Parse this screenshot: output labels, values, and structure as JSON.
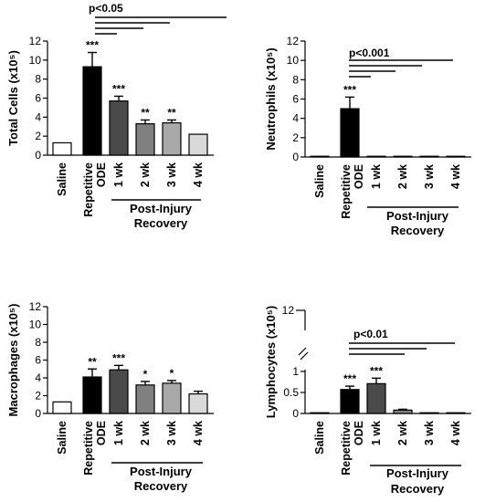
{
  "chart_data": [
    {
      "type": "bar",
      "ylabel": "Total Cells (x10⁵)",
      "ylim": [
        0,
        12
      ],
      "yticks": [
        0,
        2,
        4,
        6,
        8,
        10,
        12
      ],
      "categories": [
        "Saline",
        "Repetitive ODE",
        "1 wk",
        "2 wk",
        "3 wk",
        "4 wk"
      ],
      "values": [
        1.3,
        9.3,
        5.7,
        3.3,
        3.4,
        2.2
      ],
      "errors": [
        0.0,
        1.5,
        0.5,
        0.4,
        0.3,
        0.0
      ],
      "significance": [
        "",
        "***",
        "***",
        "**",
        "**",
        ""
      ],
      "fills": [
        "#ffffff",
        "#000000",
        "#4a4a4a",
        "#808080",
        "#a9a9a9",
        "#d9d9d9"
      ],
      "pvalue": "p<0.05",
      "group_label": [
        "Post-Injury",
        "Recovery"
      ]
    },
    {
      "type": "bar",
      "ylabel": "Neutrophils (x10⁵)",
      "ylim": [
        0,
        12
      ],
      "yticks": [
        0,
        2,
        4,
        6,
        8,
        10,
        12
      ],
      "categories": [
        "Saline",
        "Repetitive ODE",
        "1 wk",
        "2 wk",
        "3 wk",
        "4 wk"
      ],
      "values": [
        0.05,
        5.0,
        0.05,
        0.05,
        0.05,
        0.05
      ],
      "errors": [
        0.0,
        1.2,
        0.0,
        0.0,
        0.0,
        0.0
      ],
      "significance": [
        "",
        "***",
        "",
        "",
        "",
        ""
      ],
      "fills": [
        "#ffffff",
        "#000000",
        "#4a4a4a",
        "#808080",
        "#a9a9a9",
        "#d9d9d9"
      ],
      "pvalue": "p<0.001",
      "group_label": [
        "Post-Injury",
        "Recovery"
      ]
    },
    {
      "type": "bar",
      "ylabel": "Macrophages (x10⁵)",
      "ylim": [
        0,
        12
      ],
      "yticks": [
        0,
        2,
        4,
        6,
        8,
        10,
        12
      ],
      "categories": [
        "Saline",
        "Repetitive ODE",
        "1 wk",
        "2 wk",
        "3 wk",
        "4 wk"
      ],
      "values": [
        1.3,
        4.1,
        4.9,
        3.2,
        3.4,
        2.2
      ],
      "errors": [
        0.0,
        0.9,
        0.5,
        0.4,
        0.3,
        0.3
      ],
      "significance": [
        "",
        "**",
        "***",
        "*",
        "*",
        ""
      ],
      "fills": [
        "#ffffff",
        "#000000",
        "#4a4a4a",
        "#808080",
        "#a9a9a9",
        "#d9d9d9"
      ],
      "pvalue": "",
      "group_label": [
        "Post-Injury",
        "Recovery"
      ]
    },
    {
      "type": "bar",
      "ylabel": "Lymphocytes (x10⁵)",
      "ylim": [
        0,
        1
      ],
      "yticks": [
        0,
        0.5,
        1
      ],
      "axis_break": true,
      "break_top_tick": 12,
      "categories": [
        "Saline",
        "Repetitive ODE",
        "1 wk",
        "2 wk",
        "3 wk",
        "4 wk"
      ],
      "values": [
        0.0,
        0.57,
        0.71,
        0.08,
        0.01,
        0.0
      ],
      "errors": [
        0.0,
        0.08,
        0.13,
        0.02,
        0.0,
        0.0
      ],
      "significance": [
        "",
        "***",
        "***",
        "",
        "",
        ""
      ],
      "fills": [
        "#ffffff",
        "#000000",
        "#4a4a4a",
        "#808080",
        "#a9a9a9",
        "#d9d9d9"
      ],
      "pvalue": "p<0.01",
      "group_label": [
        "Post-Injury",
        "Recovery"
      ]
    }
  ]
}
